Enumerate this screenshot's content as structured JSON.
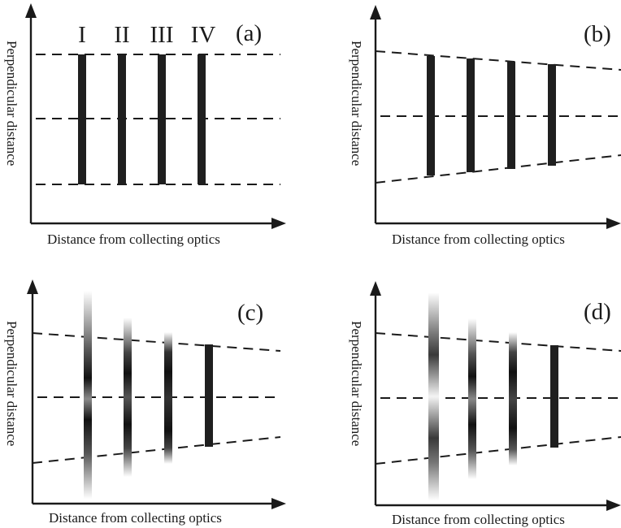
{
  "panels": [
    {
      "tag": "(a)",
      "xlabel": "Distance from collecting optics",
      "ylabel": "Perpendicular distance"
    },
    {
      "tag": "(b)",
      "xlabel": "Distance from collecting optics",
      "ylabel": "Perpendicular distance"
    },
    {
      "tag": "(c)",
      "xlabel": "Distance from collecting optics",
      "ylabel": "Perpendicular distance"
    },
    {
      "tag": "(d)",
      "xlabel": "Distance from collecting optics",
      "ylabel": "Perpendicular distance"
    }
  ],
  "bar_labels": [
    "I",
    "II",
    "III",
    "IV"
  ],
  "colors": {
    "ink": "#1a1a1a",
    "bar": "#1f1f1f",
    "background": "#ffffff"
  }
}
